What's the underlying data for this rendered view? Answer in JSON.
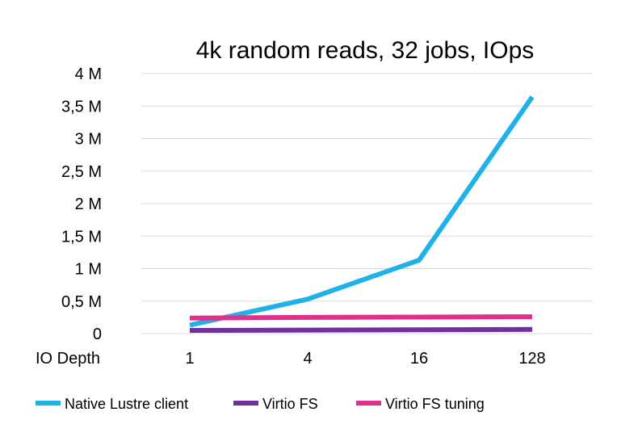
{
  "chart_data": {
    "type": "line",
    "title": "4k random reads, 32 jobs, IOps",
    "xlabel": "IO Depth",
    "ylabel": "",
    "categories": [
      "1",
      "4",
      "16",
      "128"
    ],
    "ylim": [
      0,
      4000000
    ],
    "y_ticks": [
      {
        "value": 0,
        "label": "0"
      },
      {
        "value": 500000,
        "label": "0,5 M"
      },
      {
        "value": 1000000,
        "label": "1 M"
      },
      {
        "value": 1500000,
        "label": "1,5 M"
      },
      {
        "value": 2000000,
        "label": "2 M"
      },
      {
        "value": 2500000,
        "label": "2,5 M"
      },
      {
        "value": 3000000,
        "label": "3 M"
      },
      {
        "value": 3500000,
        "label": "3,5 M"
      },
      {
        "value": 4000000,
        "label": "4 M"
      }
    ],
    "grid": true,
    "legend_position": "bottom",
    "series": [
      {
        "name": "Native Lustre client",
        "color": "#1fb2e8",
        "values": [
          130000,
          530000,
          1130000,
          3640000
        ]
      },
      {
        "name": "Virtio FS",
        "color": "#7030a0",
        "values": [
          50000,
          55000,
          60000,
          65000
        ]
      },
      {
        "name": "Virtio FS tuning",
        "color": "#e0308c",
        "values": [
          240000,
          250000,
          255000,
          260000
        ]
      }
    ]
  }
}
